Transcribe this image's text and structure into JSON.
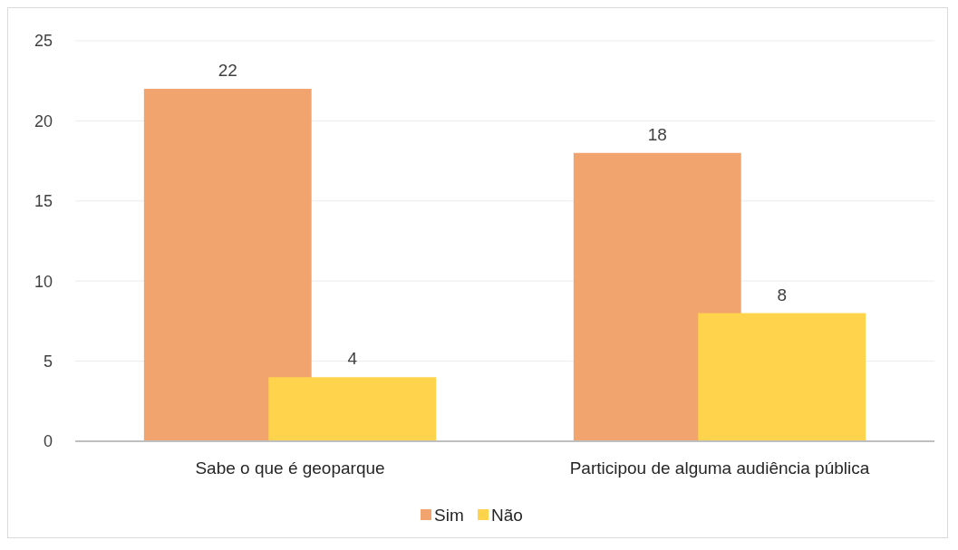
{
  "chart_data": {
    "type": "bar",
    "categories": [
      "Sabe o que é geoparque",
      "Participou de alguma audiência pública"
    ],
    "series": [
      {
        "name": "Sim",
        "color": "#f2a46e",
        "values": [
          22,
          18
        ]
      },
      {
        "name": "Não",
        "color": "#ffd34c",
        "values": [
          4,
          8
        ]
      }
    ],
    "ylim": [
      0,
      25
    ],
    "yticks": [
      0,
      5,
      10,
      15,
      20,
      25
    ],
    "grid": "y",
    "legend": "bottom",
    "data_labels": true
  }
}
